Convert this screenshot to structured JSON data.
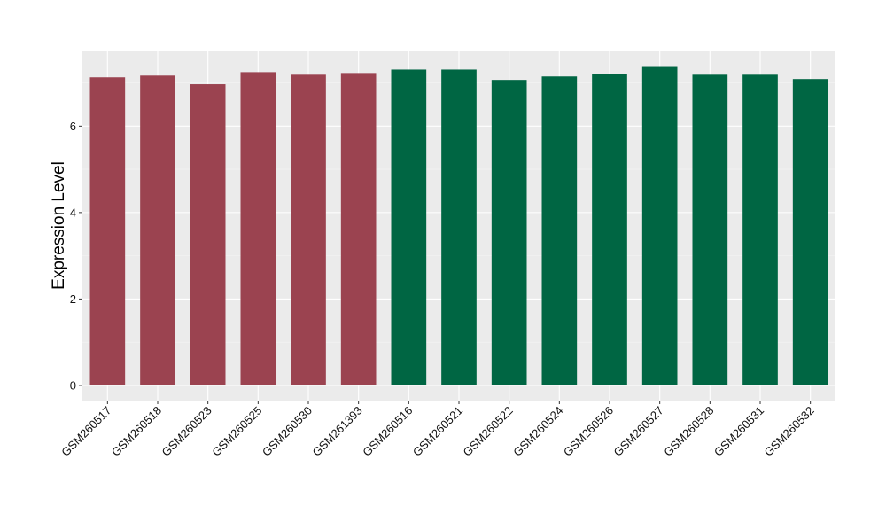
{
  "chart_data": {
    "type": "bar",
    "title": "",
    "xlabel": "",
    "ylabel": "Expression Level",
    "ylim": [
      -0.35,
      7.75
    ],
    "yticks": [
      0,
      2,
      4,
      6
    ],
    "grid": true,
    "legend": "none",
    "categories": [
      "GSM260517",
      "GSM260518",
      "GSM260523",
      "GSM260525",
      "GSM260530",
      "GSM261393",
      "GSM260516",
      "GSM260521",
      "GSM260522",
      "GSM260524",
      "GSM260526",
      "GSM260527",
      "GSM260528",
      "GSM260531",
      "GSM260532"
    ],
    "values": [
      7.13,
      7.17,
      6.97,
      7.25,
      7.19,
      7.23,
      7.31,
      7.31,
      7.07,
      7.15,
      7.21,
      7.37,
      7.19,
      7.19,
      7.09
    ],
    "bar_colors": [
      "#9b4350",
      "#9b4350",
      "#9b4350",
      "#9b4350",
      "#9b4350",
      "#9b4350",
      "#006643",
      "#006643",
      "#006643",
      "#006643",
      "#006643",
      "#006643",
      "#006643",
      "#006643",
      "#006643"
    ]
  }
}
